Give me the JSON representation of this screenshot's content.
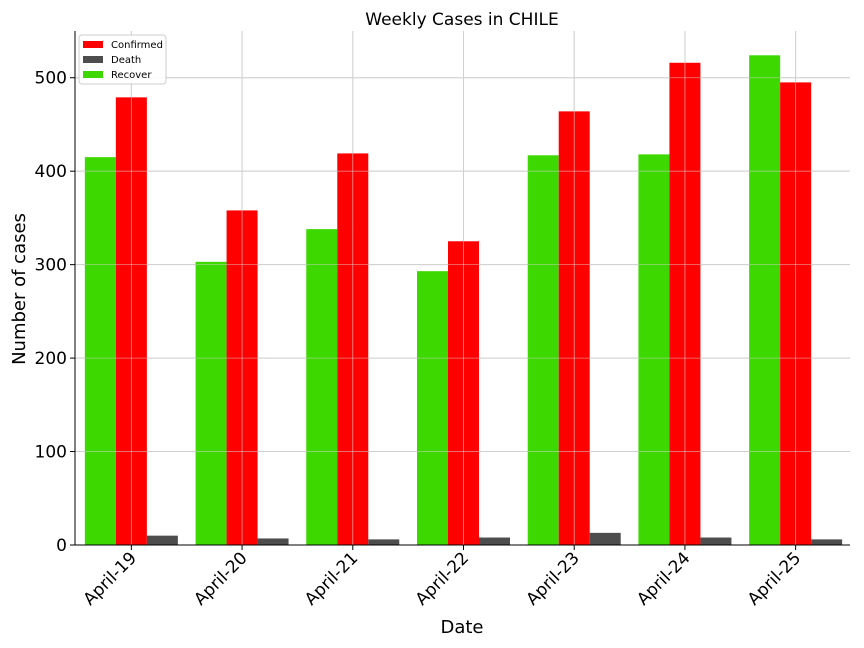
{
  "chart_data": {
    "type": "bar",
    "title": "Weekly Cases in CHILE",
    "xlabel": "Date",
    "ylabel": "Number of cases",
    "categories": [
      "April-19",
      "April-20",
      "April-21",
      "April-22",
      "April-23",
      "April-24",
      "April-25"
    ],
    "series": [
      {
        "name": "Recover",
        "color": "#3dd800",
        "values": [
          415,
          303,
          338,
          293,
          417,
          418,
          524
        ]
      },
      {
        "name": "Confirmed",
        "color": "#ff0000",
        "values": [
          479,
          358,
          419,
          325,
          464,
          516,
          495
        ]
      },
      {
        "name": "Death",
        "color": "#4d4d4d",
        "values": [
          10,
          7,
          6,
          8,
          13,
          8,
          6
        ]
      }
    ],
    "legend_order": [
      "Confirmed",
      "Death",
      "Recover"
    ],
    "ylim": [
      0,
      550
    ],
    "yticks": [
      0,
      100,
      200,
      300,
      400,
      500
    ],
    "grid": true,
    "legend_position": "top-left"
  }
}
